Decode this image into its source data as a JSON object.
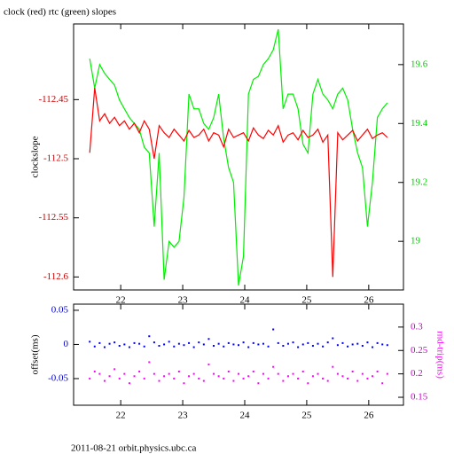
{
  "chart_data": [
    {
      "type": "line",
      "title": "clock (red) rtc (green) slopes",
      "y_label": "clockslope",
      "x": [
        21.5,
        21.58,
        21.66,
        21.74,
        21.82,
        21.9,
        21.98,
        22.06,
        22.14,
        22.22,
        22.3,
        22.38,
        22.46,
        22.54,
        22.62,
        22.7,
        22.78,
        22.86,
        22.94,
        23.02,
        23.1,
        23.18,
        23.26,
        23.34,
        23.42,
        23.5,
        23.58,
        23.66,
        23.74,
        23.82,
        23.9,
        23.98,
        24.06,
        24.14,
        24.22,
        24.3,
        24.38,
        24.46,
        24.54,
        24.62,
        24.7,
        24.78,
        24.86,
        24.94,
        25.02,
        25.1,
        25.18,
        25.26,
        25.34,
        25.42,
        25.5,
        25.58,
        25.66,
        25.74,
        25.82,
        25.9,
        25.98,
        26.06,
        26.14,
        26.22,
        26.3
      ],
      "series": [
        {
          "name": "clock",
          "color": "#ff0000",
          "axis": "y",
          "values": [
            -112.495,
            -112.44,
            -112.468,
            -112.462,
            -112.47,
            -112.465,
            -112.472,
            -112.468,
            -112.475,
            -112.47,
            -112.478,
            -112.468,
            -112.475,
            -112.5,
            -112.472,
            -112.478,
            -112.482,
            -112.475,
            -112.48,
            -112.485,
            -112.476,
            -112.482,
            -112.48,
            -112.475,
            -112.485,
            -112.478,
            -112.48,
            -112.49,
            -112.475,
            -112.482,
            -112.48,
            -112.478,
            -112.485,
            -112.474,
            -112.48,
            -112.483,
            -112.476,
            -112.48,
            -112.472,
            -112.486,
            -112.48,
            -112.478,
            -112.484,
            -112.476,
            -112.482,
            -112.48,
            -112.475,
            -112.486,
            -112.48,
            -112.6,
            -112.478,
            -112.484,
            -112.48,
            -112.476,
            -112.485,
            -112.48,
            -112.475,
            -112.483,
            -112.48,
            -112.478,
            -112.482
          ]
        },
        {
          "name": "rtc",
          "color": "#00ee00",
          "axis": "y2",
          "values": [
            19.62,
            19.52,
            19.6,
            19.57,
            19.55,
            19.53,
            19.48,
            19.45,
            19.42,
            19.4,
            19.38,
            19.32,
            19.3,
            19.05,
            19.3,
            18.87,
            19.0,
            18.98,
            19.0,
            19.15,
            19.5,
            19.45,
            19.45,
            19.4,
            19.38,
            19.42,
            19.5,
            19.35,
            19.25,
            19.2,
            18.85,
            18.95,
            19.5,
            19.55,
            19.56,
            19.6,
            19.62,
            19.65,
            19.72,
            19.45,
            19.5,
            19.5,
            19.45,
            19.33,
            19.3,
            19.5,
            19.55,
            19.5,
            19.48,
            19.45,
            19.5,
            19.52,
            19.48,
            19.38,
            19.3,
            19.25,
            19.05,
            19.2,
            19.42,
            19.45,
            19.47
          ]
        }
      ],
      "xlim": [
        21.24,
        26.56
      ],
      "xticks": [
        22,
        23,
        24,
        25,
        26
      ],
      "ylim": [
        -112.611,
        -112.386
      ],
      "yticks": [
        -112.6,
        -112.55,
        -112.5,
        -112.45
      ],
      "ytick_color": "#cc0000",
      "y2lim": [
        18.835,
        19.738
      ],
      "y2ticks": [
        19,
        19.2,
        19.4,
        19.6
      ],
      "y2tick_color": "#00cc00"
    },
    {
      "type": "scatter",
      "y_label": "offset(ms)",
      "y2_label": "rnd-trip(ms)",
      "x": [
        21.5,
        21.58,
        21.66,
        21.74,
        21.82,
        21.9,
        21.98,
        22.06,
        22.14,
        22.22,
        22.3,
        22.38,
        22.46,
        22.54,
        22.62,
        22.7,
        22.78,
        22.86,
        22.94,
        23.02,
        23.1,
        23.18,
        23.26,
        23.34,
        23.42,
        23.5,
        23.58,
        23.66,
        23.74,
        23.82,
        23.9,
        23.98,
        24.06,
        24.14,
        24.22,
        24.3,
        24.38,
        24.46,
        24.54,
        24.62,
        24.7,
        24.78,
        24.86,
        24.94,
        25.02,
        25.1,
        25.18,
        25.26,
        25.34,
        25.42,
        25.5,
        25.58,
        25.66,
        25.74,
        25.82,
        25.9,
        25.98,
        26.06,
        26.14,
        26.22,
        26.3
      ],
      "series": [
        {
          "name": "offset",
          "color": "#0000ff",
          "axis": "y",
          "values": [
            0.004,
            -0.003,
            0.002,
            -0.004,
            0.001,
            0.003,
            -0.002,
            0.0,
            -0.004,
            0.002,
            0.001,
            -0.003,
            0.012,
            0.003,
            -0.002,
            0.0,
            0.004,
            -0.003,
            0.001,
            -0.001,
            0.002,
            -0.004,
            0.003,
            0.0,
            0.008,
            -0.002,
            0.001,
            -0.003,
            0.002,
            0.0,
            -0.001,
            0.003,
            -0.004,
            0.002,
            0.0,
            0.001,
            -0.003,
            0.022,
            0.002,
            -0.002,
            0.001,
            0.003,
            -0.004,
            0.0,
            0.002,
            -0.002,
            0.001,
            -0.003,
            0.003,
            0.009,
            -0.001,
            0.002,
            -0.003,
            0.0,
            0.001,
            -0.002,
            0.003,
            -0.004,
            0.002,
            0.0,
            -0.001
          ]
        },
        {
          "name": "rnd-trip",
          "color": "#ff00ff",
          "axis": "y2",
          "values": [
            0.19,
            0.205,
            0.2,
            0.185,
            0.195,
            0.21,
            0.19,
            0.2,
            0.18,
            0.195,
            0.205,
            0.19,
            0.225,
            0.2,
            0.185,
            0.195,
            0.2,
            0.19,
            0.205,
            0.18,
            0.195,
            0.2,
            0.19,
            0.185,
            0.22,
            0.2,
            0.195,
            0.19,
            0.205,
            0.185,
            0.2,
            0.19,
            0.195,
            0.205,
            0.18,
            0.2,
            0.19,
            0.215,
            0.2,
            0.185,
            0.195,
            0.2,
            0.19,
            0.205,
            0.18,
            0.195,
            0.2,
            0.19,
            0.185,
            0.215,
            0.2,
            0.195,
            0.19,
            0.205,
            0.185,
            0.2,
            0.19,
            0.195,
            0.205,
            0.18,
            0.2
          ]
        }
      ],
      "xlim": [
        21.24,
        26.56
      ],
      "xticks": [
        22,
        23,
        24,
        25,
        26
      ],
      "ylim": [
        -0.089,
        0.059
      ],
      "yticks": [
        -0.05,
        0,
        0.05
      ],
      "ytick_color": "#0000cc",
      "y2lim": [
        0.133,
        0.349
      ],
      "y2ticks": [
        0.15,
        0.2,
        0.25,
        0.3
      ],
      "y2tick_color": "#cc00cc"
    }
  ],
  "footer": "2011-08-21 orbit.physics.ubc.ca"
}
